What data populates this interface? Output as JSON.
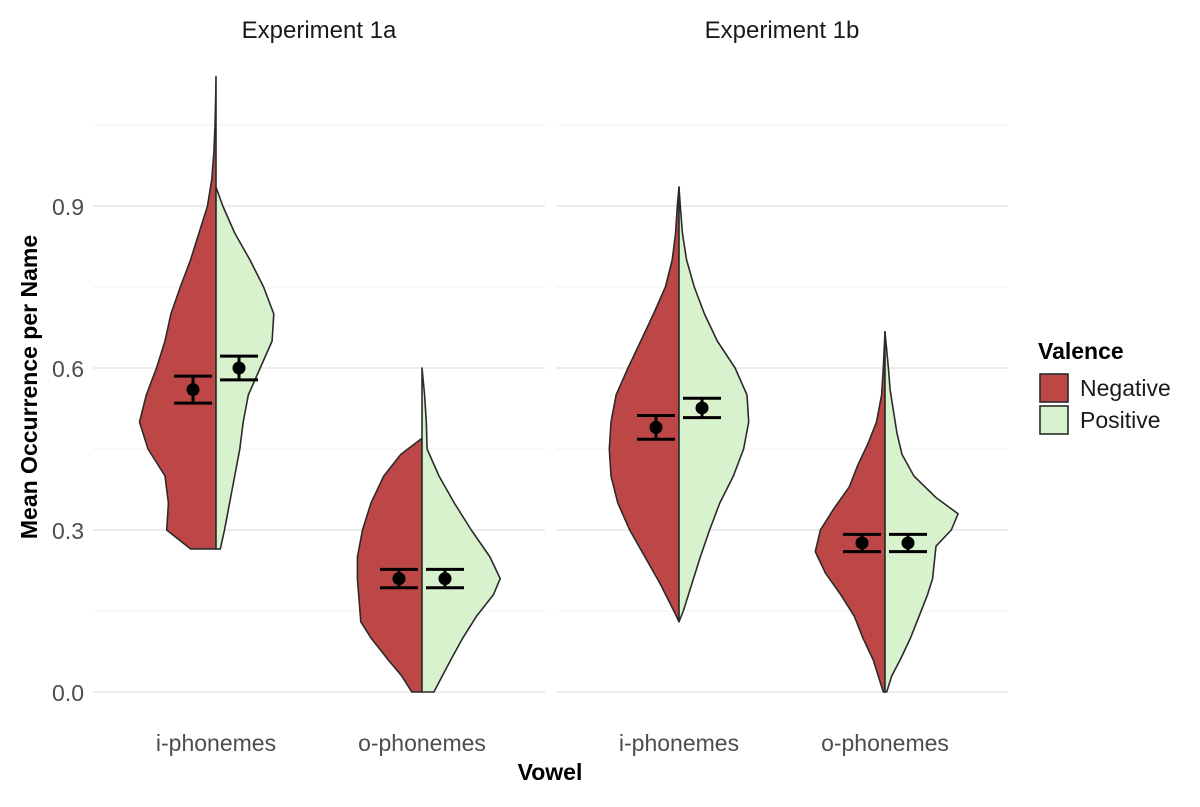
{
  "chart_data": {
    "type": "violin",
    "title": "",
    "xlabel": "Vowel",
    "ylabel": "Mean Occurrence per Name",
    "ylim": [
      -0.04,
      1.13
    ],
    "yticks": [
      0.0,
      0.3,
      0.6,
      0.9
    ],
    "ytick_labels": [
      "0.0",
      "0.3",
      "0.6",
      "0.9"
    ],
    "categories": [
      "i-phonemes",
      "o-phonemes"
    ],
    "legend": {
      "title": "Valence",
      "position": "right",
      "entries": [
        {
          "name": "Negative",
          "color": "#bd4747"
        },
        {
          "name": "Positive",
          "color": "#d8f2cd"
        }
      ]
    },
    "facets": [
      {
        "title": "Experiment 1a",
        "groups": [
          {
            "category": "i-phonemes",
            "points": [
              {
                "series": "Negative",
                "mean": 0.56,
                "lower": 0.535,
                "upper": 0.585
              },
              {
                "series": "Positive",
                "mean": 0.6,
                "lower": 0.578,
                "upper": 0.622
              }
            ],
            "density": {
              "Negative": [
                [
                  0.265,
                  0.3
                ],
                [
                  0.3,
                  0.58
                ],
                [
                  0.35,
                  0.56
                ],
                [
                  0.4,
                  0.6
                ],
                [
                  0.45,
                  0.8
                ],
                [
                  0.5,
                  0.9
                ],
                [
                  0.55,
                  0.82
                ],
                [
                  0.6,
                  0.7
                ],
                [
                  0.65,
                  0.6
                ],
                [
                  0.7,
                  0.53
                ],
                [
                  0.75,
                  0.42
                ],
                [
                  0.8,
                  0.3
                ],
                [
                  0.85,
                  0.2
                ],
                [
                  0.9,
                  0.1
                ],
                [
                  0.95,
                  0.05
                ],
                [
                  1.0,
                  0.025
                ],
                [
                  1.05,
                  0.012
                ],
                [
                  1.1,
                  0.003
                ],
                [
                  1.14,
                  0.0
                ]
              ],
              "Positive": [
                [
                  0.265,
                  0.05
                ],
                [
                  0.3,
                  0.1
                ],
                [
                  0.35,
                  0.16
                ],
                [
                  0.4,
                  0.22
                ],
                [
                  0.45,
                  0.28
                ],
                [
                  0.5,
                  0.32
                ],
                [
                  0.55,
                  0.38
                ],
                [
                  0.6,
                  0.52
                ],
                [
                  0.65,
                  0.66
                ],
                [
                  0.7,
                  0.68
                ],
                [
                  0.75,
                  0.56
                ],
                [
                  0.8,
                  0.4
                ],
                [
                  0.85,
                  0.22
                ],
                [
                  0.9,
                  0.08
                ],
                [
                  0.935,
                  0.0
                ]
              ]
            }
          },
          {
            "category": "o-phonemes",
            "points": [
              {
                "series": "Negative",
                "mean": 0.21,
                "lower": 0.193,
                "upper": 0.227
              },
              {
                "series": "Positive",
                "mean": 0.21,
                "lower": 0.193,
                "upper": 0.227
              }
            ],
            "density": {
              "Negative": [
                [
                  0.0,
                  0.12
                ],
                [
                  0.03,
                  0.24
                ],
                [
                  0.06,
                  0.4
                ],
                [
                  0.1,
                  0.6
                ],
                [
                  0.13,
                  0.72
                ],
                [
                  0.17,
                  0.74
                ],
                [
                  0.21,
                  0.76
                ],
                [
                  0.25,
                  0.76
                ],
                [
                  0.3,
                  0.7
                ],
                [
                  0.35,
                  0.6
                ],
                [
                  0.4,
                  0.45
                ],
                [
                  0.44,
                  0.25
                ],
                [
                  0.47,
                  0.0
                ]
              ],
              "Positive": [
                [
                  0.0,
                  0.14
                ],
                [
                  0.03,
                  0.24
                ],
                [
                  0.06,
                  0.34
                ],
                [
                  0.1,
                  0.48
                ],
                [
                  0.14,
                  0.64
                ],
                [
                  0.18,
                  0.84
                ],
                [
                  0.21,
                  0.92
                ],
                [
                  0.25,
                  0.8
                ],
                [
                  0.3,
                  0.58
                ],
                [
                  0.35,
                  0.38
                ],
                [
                  0.4,
                  0.2
                ],
                [
                  0.45,
                  0.06
                ],
                [
                  0.5,
                  0.05
                ],
                [
                  0.55,
                  0.03
                ],
                [
                  0.6,
                  0.0
                ]
              ]
            }
          }
        ]
      },
      {
        "title": "Experiment 1b",
        "groups": [
          {
            "category": "i-phonemes",
            "points": [
              {
                "series": "Negative",
                "mean": 0.49,
                "lower": 0.468,
                "upper": 0.512
              },
              {
                "series": "Positive",
                "mean": 0.526,
                "lower": 0.508,
                "upper": 0.544
              }
            ],
            "density": {
              "Negative": [
                [
                  0.13,
                  0.0
                ],
                [
                  0.15,
                  0.06
                ],
                [
                  0.2,
                  0.22
                ],
                [
                  0.25,
                  0.4
                ],
                [
                  0.3,
                  0.58
                ],
                [
                  0.35,
                  0.72
                ],
                [
                  0.4,
                  0.8
                ],
                [
                  0.45,
                  0.82
                ],
                [
                  0.5,
                  0.8
                ],
                [
                  0.55,
                  0.74
                ],
                [
                  0.6,
                  0.6
                ],
                [
                  0.65,
                  0.45
                ],
                [
                  0.7,
                  0.3
                ],
                [
                  0.75,
                  0.16
                ],
                [
                  0.8,
                  0.08
                ],
                [
                  0.85,
                  0.04
                ],
                [
                  0.9,
                  0.02
                ],
                [
                  0.935,
                  0.0
                ]
              ],
              "Positive": [
                [
                  0.13,
                  0.0
                ],
                [
                  0.15,
                  0.05
                ],
                [
                  0.2,
                  0.15
                ],
                [
                  0.25,
                  0.25
                ],
                [
                  0.3,
                  0.36
                ],
                [
                  0.35,
                  0.48
                ],
                [
                  0.4,
                  0.64
                ],
                [
                  0.45,
                  0.76
                ],
                [
                  0.5,
                  0.82
                ],
                [
                  0.55,
                  0.8
                ],
                [
                  0.6,
                  0.66
                ],
                [
                  0.65,
                  0.45
                ],
                [
                  0.7,
                  0.3
                ],
                [
                  0.75,
                  0.18
                ],
                [
                  0.8,
                  0.09
                ],
                [
                  0.85,
                  0.04
                ],
                [
                  0.9,
                  0.015
                ],
                [
                  0.935,
                  0.0
                ]
              ]
            }
          },
          {
            "category": "o-phonemes",
            "points": [
              {
                "series": "Negative",
                "mean": 0.276,
                "lower": 0.26,
                "upper": 0.292
              },
              {
                "series": "Positive",
                "mean": 0.276,
                "lower": 0.26,
                "upper": 0.292
              }
            ],
            "density": {
              "Negative": [
                [
                  0.0,
                  0.02
                ],
                [
                  0.03,
                  0.08
                ],
                [
                  0.06,
                  0.14
                ],
                [
                  0.1,
                  0.26
                ],
                [
                  0.14,
                  0.36
                ],
                [
                  0.18,
                  0.52
                ],
                [
                  0.22,
                  0.7
                ],
                [
                  0.26,
                  0.82
                ],
                [
                  0.3,
                  0.76
                ],
                [
                  0.34,
                  0.6
                ],
                [
                  0.38,
                  0.42
                ],
                [
                  0.42,
                  0.32
                ],
                [
                  0.46,
                  0.2
                ],
                [
                  0.5,
                  0.1
                ],
                [
                  0.55,
                  0.04
                ],
                [
                  0.6,
                  0.02
                ],
                [
                  0.667,
                  0.0
                ]
              ],
              "Positive": [
                [
                  0.0,
                  0.02
                ],
                [
                  0.03,
                  0.08
                ],
                [
                  0.06,
                  0.18
                ],
                [
                  0.1,
                  0.3
                ],
                [
                  0.14,
                  0.4
                ],
                [
                  0.18,
                  0.5
                ],
                [
                  0.21,
                  0.56
                ],
                [
                  0.24,
                  0.58
                ],
                [
                  0.27,
                  0.6
                ],
                [
                  0.3,
                  0.78
                ],
                [
                  0.33,
                  0.86
                ],
                [
                  0.36,
                  0.6
                ],
                [
                  0.4,
                  0.34
                ],
                [
                  0.44,
                  0.2
                ],
                [
                  0.48,
                  0.14
                ],
                [
                  0.52,
                  0.1
                ],
                [
                  0.56,
                  0.06
                ],
                [
                  0.6,
                  0.04
                ],
                [
                  0.667,
                  0.0
                ]
              ]
            }
          }
        ]
      }
    ]
  }
}
